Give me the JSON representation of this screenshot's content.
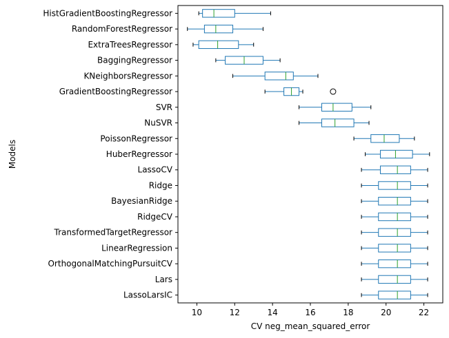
{
  "chart_data": {
    "type": "boxplot",
    "orientation": "horizontal",
    "xlabel": "CV neg_mean_squared_error",
    "ylabel": "Models",
    "xlim": [
      9.0,
      23.0
    ],
    "xticks": [
      10,
      12,
      14,
      16,
      18,
      20,
      22
    ],
    "colors": {
      "box": "#1f77b4",
      "median": "#2ca02c",
      "outlier": "#000000"
    },
    "series": [
      {
        "name": "HistGradientBoostingRegressor",
        "whislo": 10.1,
        "q1": 10.3,
        "med": 10.9,
        "q3": 12.0,
        "whishi": 13.9,
        "fliers": []
      },
      {
        "name": "RandomForestRegressor",
        "whislo": 9.5,
        "q1": 10.4,
        "med": 11.0,
        "q3": 11.9,
        "whishi": 13.5,
        "fliers": []
      },
      {
        "name": "ExtraTreesRegressor",
        "whislo": 9.8,
        "q1": 10.1,
        "med": 11.1,
        "q3": 12.2,
        "whishi": 13.0,
        "fliers": []
      },
      {
        "name": "BaggingRegressor",
        "whislo": 11.0,
        "q1": 11.5,
        "med": 12.5,
        "q3": 13.5,
        "whishi": 14.4,
        "fliers": []
      },
      {
        "name": "KNeighborsRegressor",
        "whislo": 11.9,
        "q1": 13.6,
        "med": 14.7,
        "q3": 15.1,
        "whishi": 16.4,
        "fliers": []
      },
      {
        "name": "GradientBoostingRegressor",
        "whislo": 13.6,
        "q1": 14.6,
        "med": 15.0,
        "q3": 15.4,
        "whishi": 15.6,
        "fliers": [
          17.2
        ]
      },
      {
        "name": "SVR",
        "whislo": 15.4,
        "q1": 16.6,
        "med": 17.2,
        "q3": 18.2,
        "whishi": 19.2,
        "fliers": []
      },
      {
        "name": "NuSVR",
        "whislo": 15.4,
        "q1": 16.6,
        "med": 17.3,
        "q3": 18.3,
        "whishi": 19.1,
        "fliers": []
      },
      {
        "name": "PoissonRegressor",
        "whislo": 18.3,
        "q1": 19.2,
        "med": 19.9,
        "q3": 20.7,
        "whishi": 21.5,
        "fliers": []
      },
      {
        "name": "HuberRegressor",
        "whislo": 18.9,
        "q1": 19.7,
        "med": 20.5,
        "q3": 21.4,
        "whishi": 22.3,
        "fliers": []
      },
      {
        "name": "LassoCV",
        "whislo": 18.7,
        "q1": 19.7,
        "med": 20.6,
        "q3": 21.3,
        "whishi": 22.2,
        "fliers": []
      },
      {
        "name": "Ridge",
        "whislo": 18.7,
        "q1": 19.6,
        "med": 20.6,
        "q3": 21.3,
        "whishi": 22.2,
        "fliers": []
      },
      {
        "name": "BayesianRidge",
        "whislo": 18.7,
        "q1": 19.6,
        "med": 20.6,
        "q3": 21.3,
        "whishi": 22.2,
        "fliers": []
      },
      {
        "name": "RidgeCV",
        "whislo": 18.7,
        "q1": 19.6,
        "med": 20.6,
        "q3": 21.3,
        "whishi": 22.2,
        "fliers": []
      },
      {
        "name": "TransformedTargetRegressor",
        "whislo": 18.7,
        "q1": 19.6,
        "med": 20.6,
        "q3": 21.3,
        "whishi": 22.2,
        "fliers": []
      },
      {
        "name": "LinearRegression",
        "whislo": 18.7,
        "q1": 19.6,
        "med": 20.6,
        "q3": 21.3,
        "whishi": 22.2,
        "fliers": []
      },
      {
        "name": "OrthogonalMatchingPursuitCV",
        "whislo": 18.7,
        "q1": 19.6,
        "med": 20.6,
        "q3": 21.3,
        "whishi": 22.2,
        "fliers": []
      },
      {
        "name": "Lars",
        "whislo": 18.7,
        "q1": 19.6,
        "med": 20.6,
        "q3": 21.3,
        "whishi": 22.2,
        "fliers": []
      },
      {
        "name": "LassoLarsIC",
        "whislo": 18.7,
        "q1": 19.6,
        "med": 20.6,
        "q3": 21.3,
        "whishi": 22.2,
        "fliers": []
      }
    ]
  }
}
